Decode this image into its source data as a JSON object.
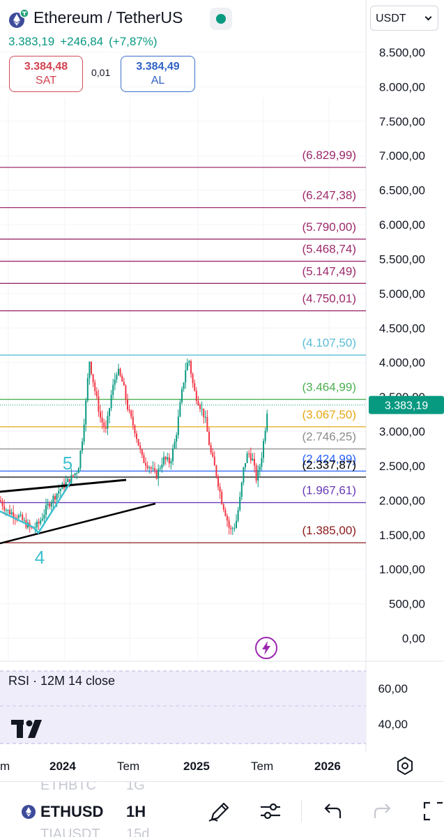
{
  "header": {
    "title": "Ethereum / TetherUS",
    "price": "3.383,19",
    "change": "+246,84",
    "change_pct": "(+7,87%)",
    "sell_price": "3.384,48",
    "sell_label": "SAT",
    "spread": "0,01",
    "buy_price": "3.384,49",
    "buy_label": "AL",
    "currency": "USDT",
    "live_color": "#089981"
  },
  "price_axis": {
    "labels": [
      "8.500,00",
      "8.000,00",
      "7.500,00",
      "7.000,00",
      "6.500,00",
      "6.000,00",
      "5.500,00",
      "5.000,00",
      "4.500,00",
      "4.000,00",
      "3.500,00",
      "3.000,00",
      "2.500,00",
      "2.000,00",
      "1.500,00",
      "1.000,00",
      "500,00",
      "0,00"
    ],
    "last_price_tag": "3.383,19",
    "last_price_color": "#089981"
  },
  "levels": [
    {
      "label": "(6.829,99)",
      "value": 6829.99,
      "color": "#9c2a6b"
    },
    {
      "label": "(6.247,38)",
      "value": 6247.38,
      "color": "#9c2a6b"
    },
    {
      "label": "(5.790,00)",
      "value": 5790.0,
      "color": "#9c2a6b"
    },
    {
      "label": "(5.468,74)",
      "value": 5468.74,
      "color": "#9c2a6b"
    },
    {
      "label": "(5.147,49)",
      "value": 5147.49,
      "color": "#9c2a6b"
    },
    {
      "label": "(4.750,01)",
      "value": 4750.01,
      "color": "#9c2a6b"
    },
    {
      "label": "(4.107,50)",
      "value": 4107.5,
      "color": "#5bbcd6"
    },
    {
      "label": "(3.464,99)",
      "value": 3464.99,
      "color": "#4caf50"
    },
    {
      "label": "(3.067,50)",
      "value": 3067.5,
      "color": "#e6a817"
    },
    {
      "label": "(2.746,25)",
      "value": 2746.25,
      "color": "#8c8c8c"
    },
    {
      "label": "(2.424,99)",
      "value": 2424.99,
      "color": "#2962ff"
    },
    {
      "label": "(2.337,87)",
      "value": 2337.87,
      "color": "#000000"
    },
    {
      "label": "(1.967,61)",
      "value": 1967.61,
      "color": "#673ab7"
    },
    {
      "label": "(1.385,00)",
      "value": 1385.0,
      "color": "#8b1a1a"
    }
  ],
  "wave_labels": [
    {
      "text": "5",
      "color": "#3cc0cf"
    },
    {
      "text": "4",
      "color": "#3cc0cf"
    }
  ],
  "rsi": {
    "title": "RSI · 12M 14 close",
    "labels": [
      "60,00",
      "40,00"
    ]
  },
  "time_axis": {
    "labels": [
      {
        "text": "m",
        "bold": false
      },
      {
        "text": "2024",
        "bold": true
      },
      {
        "text": "Tem",
        "bold": false
      },
      {
        "text": "2025",
        "bold": true
      },
      {
        "text": "Tem",
        "bold": false
      },
      {
        "text": "2026",
        "bold": true
      }
    ]
  },
  "bottom_bar": {
    "ghost_top": [
      "ETHBTC",
      "1G"
    ],
    "symbol": "ETHUSD",
    "interval": "1H",
    "ghost_bottom": [
      "TIAUSDT",
      "15d"
    ],
    "icons": [
      "pencil-icon",
      "sliders-icon",
      "undo-icon",
      "redo-icon",
      "fullscreen-icon"
    ]
  },
  "icons": [
    "ethereum-tether-logo",
    "live-status-icon",
    "chevron-down-icon",
    "lightning-icon",
    "tradingview-logo",
    "hexagon-settings-icon"
  ]
}
